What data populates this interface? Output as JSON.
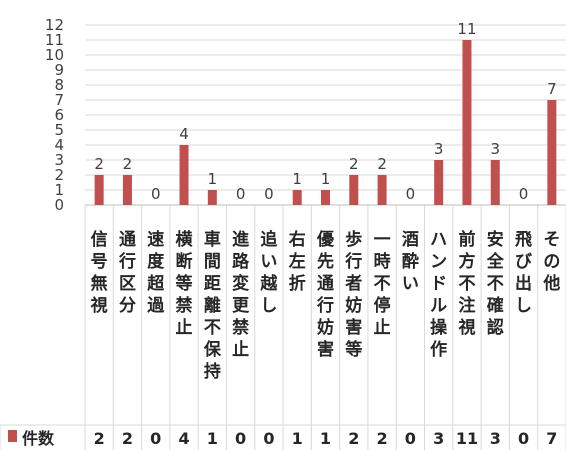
{
  "chart_data": {
    "type": "bar",
    "title": "",
    "xlabel": "",
    "ylabel": "",
    "ylim": [
      0,
      12
    ],
    "yticks": [
      0,
      1,
      2,
      3,
      4,
      5,
      6,
      7,
      8,
      9,
      10,
      11,
      12
    ],
    "grid": true,
    "legend": "data-table-bottom-left",
    "color": "#C0504D",
    "categories": [
      "信号無視",
      "通行区分",
      "速度超過",
      "横断等禁止",
      "車間距離不保持",
      "進路変更禁止",
      "追い越し",
      "右左折",
      "優先通行妨害",
      "歩行者妨害等",
      "一時不停止",
      "酒酔い",
      "ハンドル操作",
      "前方不注視",
      "安全不確認",
      "飛び出し",
      "その他"
    ],
    "series": [
      {
        "name": "件数",
        "values": [
          2,
          2,
          0,
          4,
          1,
          0,
          0,
          1,
          1,
          2,
          2,
          0,
          3,
          11,
          3,
          0,
          7
        ]
      }
    ]
  }
}
